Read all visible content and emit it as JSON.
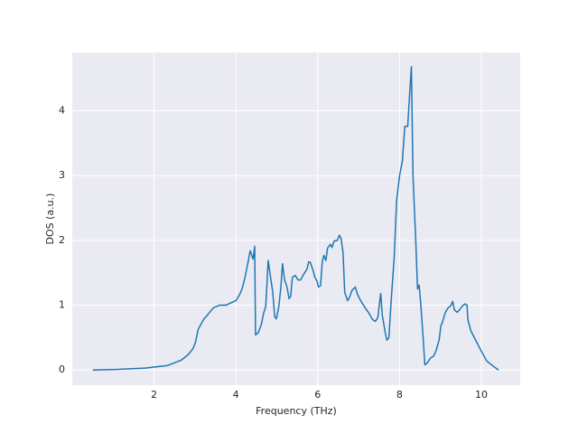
{
  "chart_data": {
    "type": "line",
    "xlabel": "Frequency (THz)",
    "ylabel": "DOS (a.u.)",
    "x": [
      0.5,
      1.12,
      1.78,
      2.33,
      2.66,
      2.84,
      2.95,
      3.01,
      3.08,
      3.21,
      3.32,
      3.45,
      3.6,
      3.76,
      3.89,
      4.0,
      4.09,
      4.15,
      4.22,
      4.29,
      4.35,
      4.42,
      4.46,
      4.48,
      4.55,
      4.62,
      4.68,
      4.73,
      4.79,
      4.84,
      4.9,
      4.95,
      4.99,
      5.05,
      5.1,
      5.14,
      5.19,
      5.25,
      5.3,
      5.34,
      5.38,
      5.45,
      5.52,
      5.58,
      5.67,
      5.74,
      5.78,
      5.82,
      5.89,
      5.93,
      5.98,
      6.02,
      6.07,
      6.11,
      6.15,
      6.2,
      6.24,
      6.31,
      6.35,
      6.4,
      6.48,
      6.53,
      6.57,
      6.62,
      6.66,
      6.73,
      6.77,
      6.84,
      6.92,
      6.97,
      7.05,
      7.16,
      7.25,
      7.34,
      7.41,
      7.47,
      7.54,
      7.58,
      7.65,
      7.69,
      7.74,
      7.8,
      7.87,
      7.93,
      8.0,
      8.07,
      8.13,
      8.2,
      8.24,
      8.29,
      8.33,
      8.4,
      8.44,
      8.48,
      8.53,
      8.57,
      8.62,
      8.68,
      8.75,
      8.84,
      8.9,
      8.97,
      9.01,
      9.05,
      9.12,
      9.19,
      9.25,
      9.3,
      9.34,
      9.41,
      9.47,
      9.54,
      9.6,
      9.65,
      9.67,
      9.74,
      9.87,
      10.0,
      10.13,
      10.29,
      10.42
    ],
    "values": [
      0,
      0.01,
      0.03,
      0.07,
      0.15,
      0.24,
      0.33,
      0.42,
      0.63,
      0.78,
      0.86,
      0.96,
      1.0,
      1.0,
      1.04,
      1.07,
      1.16,
      1.25,
      1.42,
      1.64,
      1.84,
      1.71,
      1.91,
      0.54,
      0.58,
      0.7,
      0.88,
      0.98,
      1.69,
      1.46,
      1.21,
      0.82,
      0.79,
      0.98,
      1.28,
      1.64,
      1.39,
      1.28,
      1.1,
      1.14,
      1.43,
      1.46,
      1.39,
      1.39,
      1.49,
      1.56,
      1.67,
      1.66,
      1.53,
      1.43,
      1.38,
      1.28,
      1.3,
      1.66,
      1.77,
      1.69,
      1.88,
      1.94,
      1.89,
      1.99,
      2.0,
      2.08,
      2.03,
      1.81,
      1.2,
      1.07,
      1.11,
      1.23,
      1.28,
      1.17,
      1.07,
      0.96,
      0.88,
      0.78,
      0.75,
      0.81,
      1.18,
      0.84,
      0.58,
      0.46,
      0.5,
      1.11,
      1.74,
      2.62,
      2.99,
      3.23,
      3.76,
      3.76,
      4.18,
      4.68,
      2.99,
      1.95,
      1.25,
      1.31,
      0.93,
      0.56,
      0.08,
      0.11,
      0.18,
      0.22,
      0.31,
      0.47,
      0.68,
      0.74,
      0.89,
      0.96,
      0.99,
      1.06,
      0.93,
      0.89,
      0.93,
      0.99,
      1.02,
      1.0,
      0.78,
      0.61,
      0.45,
      0.29,
      0.14,
      0.06,
      0
    ],
    "color": "#1f77b4",
    "background": "#eaeaf2",
    "xlim": [
      0.0,
      10.95
    ],
    "ylim": [
      -0.234,
      4.9
    ],
    "xticks": [
      2,
      4,
      6,
      8,
      10
    ],
    "yticks": [
      0,
      1,
      2,
      3,
      4
    ],
    "grid": true
  }
}
